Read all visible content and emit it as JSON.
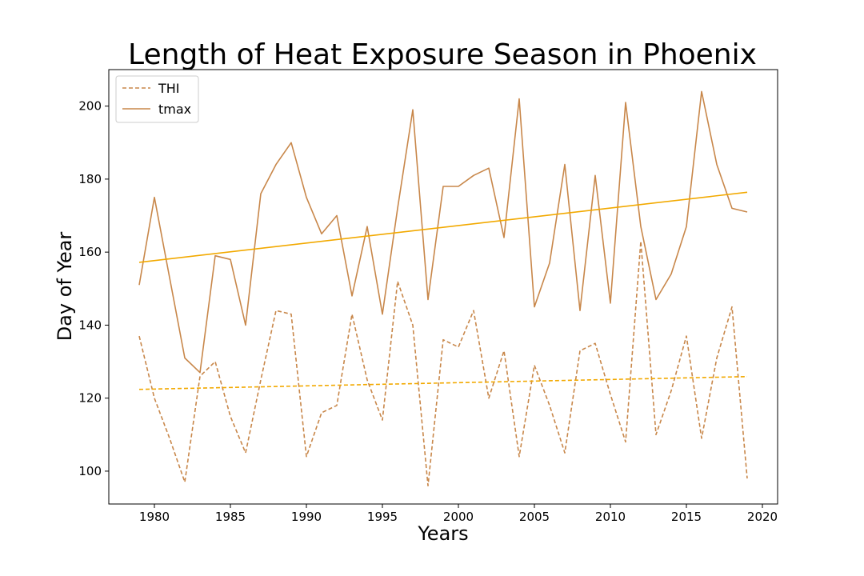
{
  "colors": {
    "series": "#c8874a",
    "trend": "#f2a900",
    "axes": "#000000",
    "legend_border": "#cccccc"
  },
  "chart_data": {
    "type": "line",
    "title": "Length of Heat Exposure Season in Phoenix",
    "xlabel": "Years",
    "ylabel": "Day of Year",
    "xlim": [
      1977,
      2021
    ],
    "ylim": [
      91,
      210
    ],
    "xticks": [
      1980,
      1985,
      1990,
      1995,
      2000,
      2005,
      2010,
      2015,
      2020
    ],
    "yticks": [
      100,
      120,
      140,
      160,
      180,
      200
    ],
    "legend_position": "top-left",
    "grid": false,
    "x": [
      1979,
      1980,
      1981,
      1982,
      1983,
      1984,
      1985,
      1986,
      1987,
      1988,
      1989,
      1990,
      1991,
      1992,
      1993,
      1994,
      1995,
      1996,
      1997,
      1998,
      1999,
      2000,
      2001,
      2002,
      2003,
      2004,
      2005,
      2006,
      2007,
      2008,
      2009,
      2010,
      2011,
      2012,
      2013,
      2014,
      2015,
      2016,
      2017,
      2018,
      2019
    ],
    "series": [
      {
        "name": "THI",
        "style": "dashed",
        "values": [
          137,
          120,
          109,
          97,
          126,
          130,
          115,
          105,
          125,
          144,
          143,
          104,
          116,
          118,
          143,
          125,
          114,
          152,
          140,
          96,
          136,
          134,
          144,
          120,
          133,
          104,
          129,
          118,
          105,
          133,
          135,
          121,
          108,
          163,
          110,
          122,
          137,
          109,
          131,
          145,
          98
        ],
        "trend": [
          122.4,
          125.9
        ]
      },
      {
        "name": "tmax",
        "style": "solid",
        "values": [
          151,
          175,
          153,
          131,
          127,
          159,
          158,
          140,
          176,
          184,
          190,
          175,
          165,
          170,
          148,
          167,
          143,
          172,
          199,
          147,
          178,
          178,
          181,
          183,
          164,
          202,
          145,
          157,
          184,
          144,
          181,
          146,
          201,
          167,
          147,
          154,
          167,
          204,
          184,
          172,
          171
        ],
        "trend": [
          157.2,
          176.4
        ]
      }
    ]
  }
}
